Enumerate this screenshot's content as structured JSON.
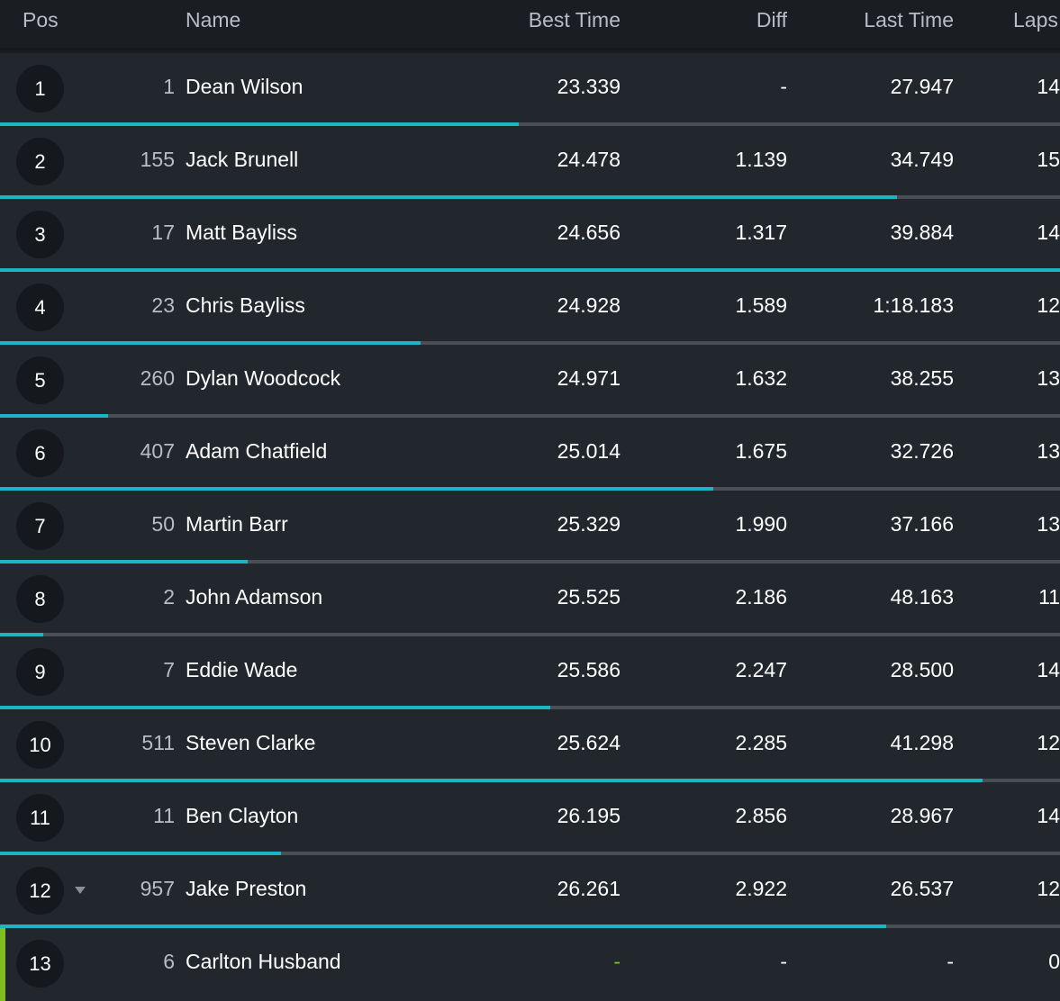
{
  "header": {
    "pos": "Pos",
    "name": "Name",
    "best_time": "Best Time",
    "diff": "Diff",
    "last_time": "Last Time",
    "laps": "Laps"
  },
  "colors": {
    "accent": "#1db5c4",
    "best_time_placeholder": "#7fbf1f",
    "row_background": "#22272e",
    "header_background": "#1a1d21"
  },
  "rows": [
    {
      "pos": "1",
      "num": "1",
      "name": "Dean Wilson",
      "best": "23.339",
      "diff": "-",
      "last": "27.947",
      "laps": "14",
      "progress": 0.489,
      "arrow": false,
      "marker": false
    },
    {
      "pos": "2",
      "num": "155",
      "name": "Jack Brunell",
      "best": "24.478",
      "diff": "1.139",
      "last": "34.749",
      "laps": "15",
      "progress": 0.846,
      "arrow": false,
      "marker": false
    },
    {
      "pos": "3",
      "num": "17",
      "name": "Matt Bayliss",
      "best": "24.656",
      "diff": "1.317",
      "last": "39.884",
      "laps": "14",
      "progress": 1.0,
      "arrow": false,
      "marker": false
    },
    {
      "pos": "4",
      "num": "23",
      "name": "Chris Bayliss",
      "best": "24.928",
      "diff": "1.589",
      "last": "1:18.183",
      "laps": "12",
      "progress": 0.397,
      "arrow": false,
      "marker": false
    },
    {
      "pos": "5",
      "num": "260",
      "name": "Dylan Woodcock",
      "best": "24.971",
      "diff": "1.632",
      "last": "38.255",
      "laps": "13",
      "progress": 0.102,
      "arrow": false,
      "marker": false
    },
    {
      "pos": "6",
      "num": "407",
      "name": "Adam Chatfield",
      "best": "25.014",
      "diff": "1.675",
      "last": "32.726",
      "laps": "13",
      "progress": 0.673,
      "arrow": false,
      "marker": false
    },
    {
      "pos": "7",
      "num": "50",
      "name": "Martin Barr",
      "best": "25.329",
      "diff": "1.990",
      "last": "37.166",
      "laps": "13",
      "progress": 0.234,
      "arrow": false,
      "marker": false
    },
    {
      "pos": "8",
      "num": "2",
      "name": "John Adamson",
      "best": "25.525",
      "diff": "2.186",
      "last": "48.163",
      "laps": "11",
      "progress": 0.041,
      "arrow": false,
      "marker": false
    },
    {
      "pos": "9",
      "num": "7",
      "name": "Eddie Wade",
      "best": "25.586",
      "diff": "2.247",
      "last": "28.500",
      "laps": "14",
      "progress": 0.519,
      "arrow": false,
      "marker": false
    },
    {
      "pos": "10",
      "num": "511",
      "name": "Steven Clarke",
      "best": "25.624",
      "diff": "2.285",
      "last": "41.298",
      "laps": "12",
      "progress": 0.927,
      "arrow": false,
      "marker": false
    },
    {
      "pos": "11",
      "num": "11",
      "name": "Ben Clayton",
      "best": "26.195",
      "diff": "2.856",
      "last": "28.967",
      "laps": "14",
      "progress": 0.265,
      "arrow": false,
      "marker": false
    },
    {
      "pos": "12",
      "num": "957",
      "name": "Jake Preston",
      "best": "26.261",
      "diff": "2.922",
      "last": "26.537",
      "laps": "12",
      "progress": 0.836,
      "arrow": true,
      "marker": false
    },
    {
      "pos": "13",
      "num": "6",
      "name": "Carlton Husband",
      "best": "-",
      "diff": "-",
      "last": "-",
      "laps": "0",
      "progress": 0,
      "arrow": false,
      "marker": true
    }
  ]
}
